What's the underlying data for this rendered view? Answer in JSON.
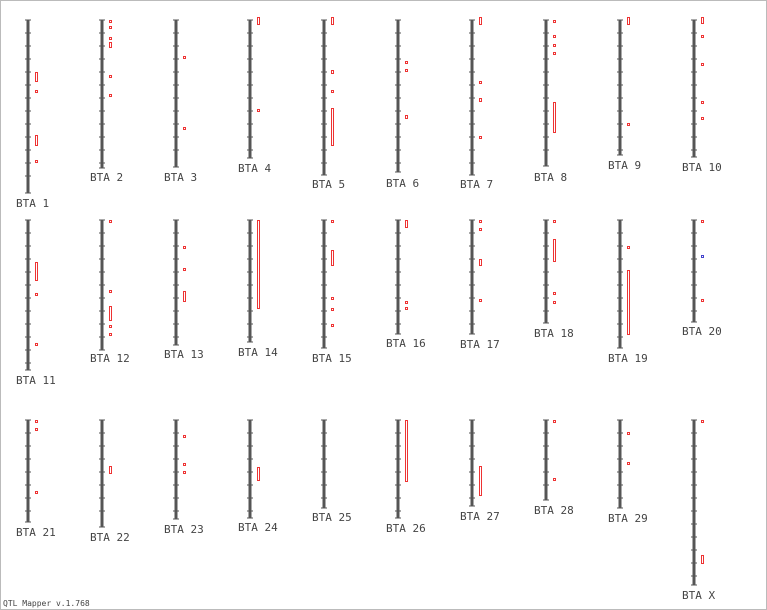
{
  "chromosomes": [
    {
      "label": "BTA 1"
    },
    {
      "label": "BTA 2"
    },
    {
      "label": "BTA 3"
    },
    {
      "label": "BTA 4"
    },
    {
      "label": "BTA 5"
    },
    {
      "label": "BTA 6"
    },
    {
      "label": "BTA 7"
    },
    {
      "label": "BTA 8"
    },
    {
      "label": "BTA 9"
    },
    {
      "label": "BTA 10"
    },
    {
      "label": "BTA 11"
    },
    {
      "label": "BTA 12"
    },
    {
      "label": "BTA 13"
    },
    {
      "label": "BTA 14"
    },
    {
      "label": "BTA 15"
    },
    {
      "label": "BTA 16"
    },
    {
      "label": "BTA 17"
    },
    {
      "label": "BTA 18"
    },
    {
      "label": "BTA 19"
    },
    {
      "label": "BTA 20"
    },
    {
      "label": "BTA 21"
    },
    {
      "label": "BTA 22"
    },
    {
      "label": "BTA 23"
    },
    {
      "label": "BTA 24"
    },
    {
      "label": "BTA 25"
    },
    {
      "label": "BTA 26"
    },
    {
      "label": "BTA 27"
    },
    {
      "label": "BTA 28"
    },
    {
      "label": "BTA 29"
    },
    {
      "label": "BTA X"
    }
  ],
  "footer": "QTL Mapper v.1.768"
}
